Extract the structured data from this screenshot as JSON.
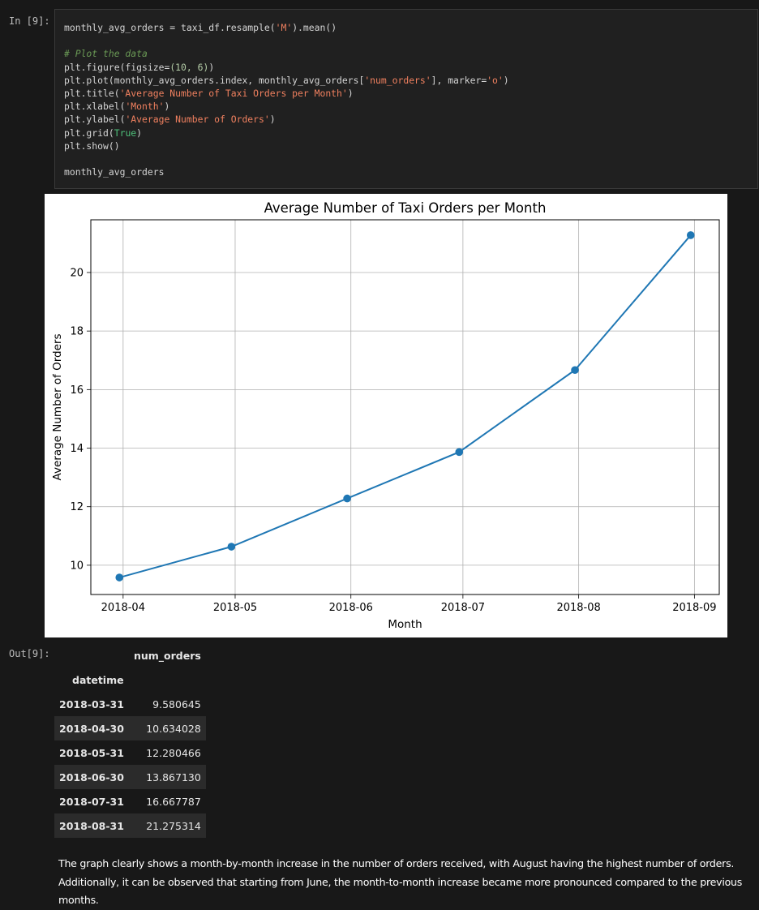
{
  "input_cell": {
    "prompt": "In [9]:",
    "code_lines": [
      [
        [
          "monthly_avg_orders = taxi_df.resample(",
          "tk-op"
        ],
        [
          "'M'",
          "tk-str"
        ],
        [
          ").mean()",
          "tk-op"
        ]
      ],
      [],
      [
        [
          "# Plot the data",
          "tk-com"
        ]
      ],
      [
        [
          "plt.figure(figsize=",
          "tk-op"
        ],
        [
          "(10, 6)",
          "tk-num"
        ],
        [
          ")",
          "tk-op"
        ]
      ],
      [
        [
          "plt.plot(monthly_avg_orders.index, monthly_avg_orders[",
          "tk-op"
        ],
        [
          "'num_orders'",
          "tk-str"
        ],
        [
          "], marker=",
          "tk-op"
        ],
        [
          "'o'",
          "tk-str"
        ],
        [
          ")",
          "tk-op"
        ]
      ],
      [
        [
          "plt.title(",
          "tk-op"
        ],
        [
          "'Average Number of Taxi Orders per Month'",
          "tk-str"
        ],
        [
          ")",
          "tk-op"
        ]
      ],
      [
        [
          "plt.xlabel(",
          "tk-op"
        ],
        [
          "'Month'",
          "tk-str"
        ],
        [
          ")",
          "tk-op"
        ]
      ],
      [
        [
          "plt.ylabel(",
          "tk-op"
        ],
        [
          "'Average Number of Orders'",
          "tk-str"
        ],
        [
          ")",
          "tk-op"
        ]
      ],
      [
        [
          "plt.grid(",
          "tk-op"
        ],
        [
          "True",
          "tk-kw"
        ],
        [
          ")",
          "tk-op"
        ]
      ],
      [
        [
          "plt.show()",
          "tk-op"
        ]
      ],
      [],
      [
        [
          "monthly_avg_orders",
          "tk-op"
        ]
      ]
    ]
  },
  "chart_data": {
    "type": "line",
    "title": "Average Number of Taxi Orders per Month",
    "xlabel": "Month",
    "ylabel": "Average Number of Orders",
    "x_tick_labels": [
      "2018-04",
      "2018-05",
      "2018-06",
      "2018-07",
      "2018-08",
      "2018-09"
    ],
    "y_tick_labels": [
      "10",
      "12",
      "14",
      "16",
      "18",
      "20"
    ],
    "x": [
      "2018-03-31",
      "2018-04-30",
      "2018-05-31",
      "2018-06-30",
      "2018-07-31",
      "2018-08-31"
    ],
    "series": [
      {
        "values": [
          9.580645,
          10.634028,
          12.280466,
          13.86713,
          16.667787,
          21.275314
        ],
        "color": "#1f77b4",
        "marker": "o"
      }
    ],
    "ylim": [
      9.0,
      21.8
    ],
    "grid": true
  },
  "output_cell": {
    "prompt": "Out[9]:",
    "column_header": "num_orders",
    "index_name": "datetime",
    "rows": [
      {
        "index": "2018-03-31",
        "value": "9.580645"
      },
      {
        "index": "2018-04-30",
        "value": "10.634028"
      },
      {
        "index": "2018-05-31",
        "value": "12.280466"
      },
      {
        "index": "2018-06-30",
        "value": "13.867130"
      },
      {
        "index": "2018-07-31",
        "value": "16.667787"
      },
      {
        "index": "2018-08-31",
        "value": "21.275314"
      }
    ]
  },
  "markdown": {
    "text": "The graph clearly shows a month-by-month increase in the number of orders received, with August having the highest number of orders. Additionally, it can be observed that starting from June, the month-to-month increase became more pronounced compared to the previous months."
  },
  "colors": {
    "background": "#181818",
    "code_cell_bg": "#202020",
    "line_color": "#1f77b4"
  }
}
